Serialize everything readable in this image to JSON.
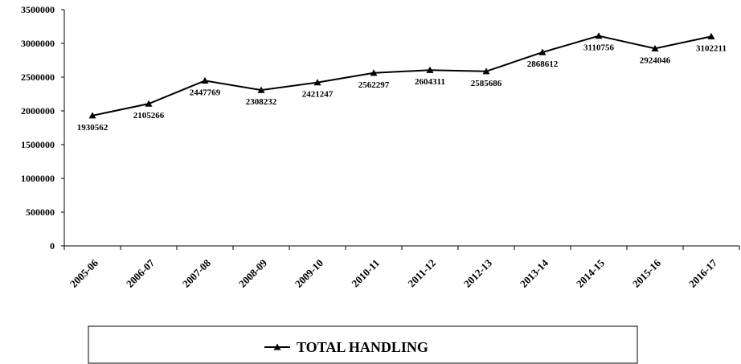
{
  "chart_data": {
    "type": "line",
    "categories": [
      "2005-06",
      "2006-07",
      "2007-08",
      "2008-09",
      "2009-10",
      "2010-11",
      "2011-12",
      "2012-13",
      "2013-14",
      "2014-15",
      "2015-16",
      "2016-17"
    ],
    "series": [
      {
        "name": "TOTAL HANDLING",
        "color": "#000000",
        "values": [
          1930562,
          2105266,
          2447769,
          2308232,
          2421247,
          2562297,
          2604311,
          2585686,
          2868612,
          3110756,
          2924046,
          3102211
        ]
      }
    ],
    "ylim": [
      0,
      3500000
    ],
    "yticks": [
      0,
      500000,
      1000000,
      1500000,
      2000000,
      2500000,
      3000000,
      3500000
    ],
    "legend": "bottom"
  }
}
